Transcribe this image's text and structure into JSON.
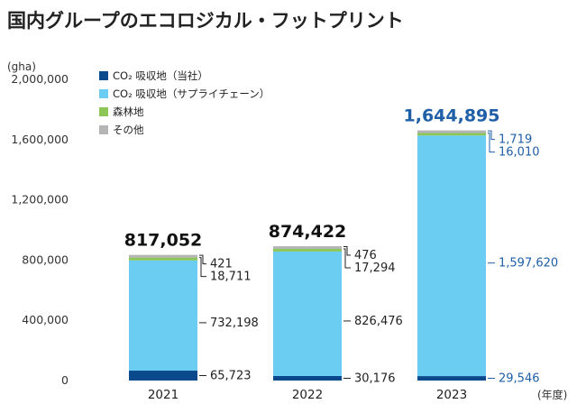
{
  "chart_data": {
    "type": "bar",
    "stacked": true,
    "title": "国内グループのエコロジカル・フットプリント",
    "ylabel": "(gha)",
    "xlabel": "(年度)",
    "ylim": [
      0,
      2000000
    ],
    "yticks": [
      0,
      400000,
      800000,
      1200000,
      1600000,
      2000000
    ],
    "ytick_labels": [
      "0",
      "400,000",
      "800,000",
      "1,200,000",
      "1,600,000",
      "2,000,000"
    ],
    "grid": false,
    "legend_position": "top-left",
    "categories": [
      "2021",
      "2022",
      "2023"
    ],
    "series": [
      {
        "name": "CO₂ 吸収地（当社）",
        "color": "#0a4a8c",
        "values": [
          65723,
          30176,
          29546
        ],
        "labels": [
          "65,723",
          "30,176",
          "29,546"
        ]
      },
      {
        "name": "CO₂ 吸収地（サプライチェーン）",
        "color": "#6ccdf2",
        "values": [
          732198,
          826476,
          1597620
        ],
        "labels": [
          "732,198",
          "826,476",
          "1,597,620"
        ]
      },
      {
        "name": "森林地",
        "color": "#8cc657",
        "values": [
          18711,
          17294,
          16010
        ],
        "labels": [
          "18,711",
          "17,294",
          "16,010"
        ]
      },
      {
        "name": "その他",
        "color": "#b5b5b5",
        "values": [
          421,
          476,
          1719
        ],
        "labels": [
          "421",
          "476",
          "1,719"
        ]
      }
    ],
    "totals": [
      817052,
      874422,
      1644895
    ],
    "total_labels": [
      "817,052",
      "874,422",
      "1,644,895"
    ],
    "label_colors": [
      "#222222",
      "#222222",
      "#1f5fa8"
    ]
  }
}
